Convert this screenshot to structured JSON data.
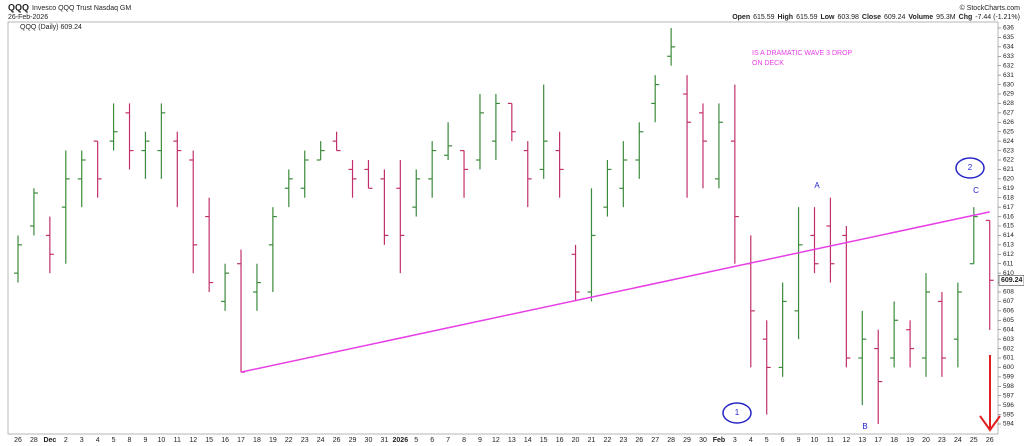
{
  "chart_data": {
    "type": "ohlc",
    "symbol": "QQQ",
    "name": "Invesco QQQ Trust Nasdaq GM",
    "date": "26-Feb-2026",
    "copyright": "© StockCharts.com",
    "legend": "QQQ (Daily)",
    "quote": {
      "open_label": "Open",
      "high_label": "High",
      "low_label": "Low",
      "close_label": "Close",
      "volume_label": "Volume",
      "volume": "95.3M",
      "chg_label": "Chg",
      "chg": "-7.44 (-1.21%)"
    },
    "categories": [
      "26",
      "28",
      "Dec",
      "2",
      "3",
      "4",
      "5",
      "8",
      "9",
      "10",
      "11",
      "12",
      "15",
      "16",
      "17",
      "18",
      "19",
      "22",
      "23",
      "24",
      "26",
      "29",
      "30",
      "31",
      "2026",
      "5",
      "6",
      "7",
      "8",
      "9",
      "12",
      "13",
      "14",
      "15",
      "16",
      "20",
      "21",
      "22",
      "23",
      "26",
      "27",
      "28",
      "29",
      "30",
      "Feb",
      "3",
      "4",
      "5",
      "6",
      "9",
      "10",
      "11",
      "12",
      "13",
      "17",
      "18",
      "19",
      "20",
      "23",
      "24",
      "25",
      "26"
    ],
    "open": [
      610,
      615,
      614,
      617,
      620,
      624,
      624,
      627,
      623,
      623,
      624,
      622,
      616,
      607,
      611,
      608,
      613,
      619,
      619,
      622,
      624,
      621,
      621,
      620,
      619,
      617,
      620,
      622.5,
      623,
      622,
      624,
      628,
      623,
      621,
      623,
      612,
      608,
      617,
      619,
      622,
      628,
      633,
      629,
      627,
      620,
      624,
      611,
      603,
      600,
      606,
      614,
      615,
      614,
      601,
      602,
      601,
      604,
      601,
      607,
      603,
      611,
      615.59
    ],
    "high": [
      614,
      619,
      616,
      623,
      623,
      624,
      628,
      628,
      625,
      628,
      625,
      623,
      618,
      611,
      612.5,
      611,
      617,
      621,
      623,
      624,
      625,
      622,
      622,
      621,
      622,
      621,
      624,
      626,
      623,
      629,
      629,
      628,
      624,
      630,
      625,
      613,
      619,
      622,
      624,
      626,
      631,
      636,
      631,
      628,
      628,
      630,
      614,
      605,
      609,
      617,
      617,
      618,
      615,
      606,
      604,
      607,
      605,
      610,
      608,
      609,
      617,
      615.59
    ],
    "low": [
      609,
      614,
      610,
      611,
      617,
      618,
      623,
      621,
      620,
      620,
      617,
      610,
      608,
      606,
      599.5,
      606,
      608,
      617,
      618,
      622,
      623,
      618,
      619,
      613,
      610,
      616,
      618,
      622,
      618,
      621,
      622,
      624,
      617,
      620,
      618,
      607,
      607,
      616,
      617,
      620,
      626,
      632,
      618,
      619,
      619,
      611,
      600,
      595,
      599,
      603,
      610,
      609,
      600,
      596,
      594,
      600,
      600,
      599,
      599,
      600,
      611,
      603.98
    ],
    "close": [
      613,
      618.5,
      612,
      620,
      622,
      620,
      625,
      623,
      624,
      627,
      623,
      613,
      609,
      610,
      599.5,
      609,
      616,
      620,
      622,
      623,
      623,
      620,
      619,
      614,
      614,
      620,
      623,
      623.5,
      621,
      627,
      628,
      625,
      620,
      624,
      621,
      608,
      614,
      621,
      622,
      625,
      630,
      634,
      626,
      624,
      626,
      616,
      606,
      600,
      607,
      613,
      611,
      611,
      601,
      603,
      598.5,
      605,
      602,
      608,
      601,
      608,
      616,
      609.24
    ],
    "up_color": "#3c8a3c",
    "down_color": "#c2306c",
    "ylim": [
      594,
      636
    ],
    "yticks": [
      594,
      595,
      596,
      597,
      598,
      599,
      600,
      601,
      602,
      603,
      604,
      605,
      606,
      607,
      608,
      609,
      610,
      611,
      612,
      613,
      614,
      615,
      616,
      617,
      618,
      619,
      620,
      621,
      622,
      623,
      624,
      625,
      626,
      627,
      628,
      629,
      630,
      631,
      632,
      633,
      634,
      635,
      636
    ],
    "grid": false,
    "trendline": {
      "color": "#e83ee8",
      "values": [
        599.5,
        616.5
      ]
    },
    "annotations": {
      "note": [
        "IS A DRAMATIC WAVE 3 DROP",
        "ON DECK"
      ],
      "waves": [
        "1",
        "2",
        "A",
        "B",
        "C"
      ]
    }
  }
}
